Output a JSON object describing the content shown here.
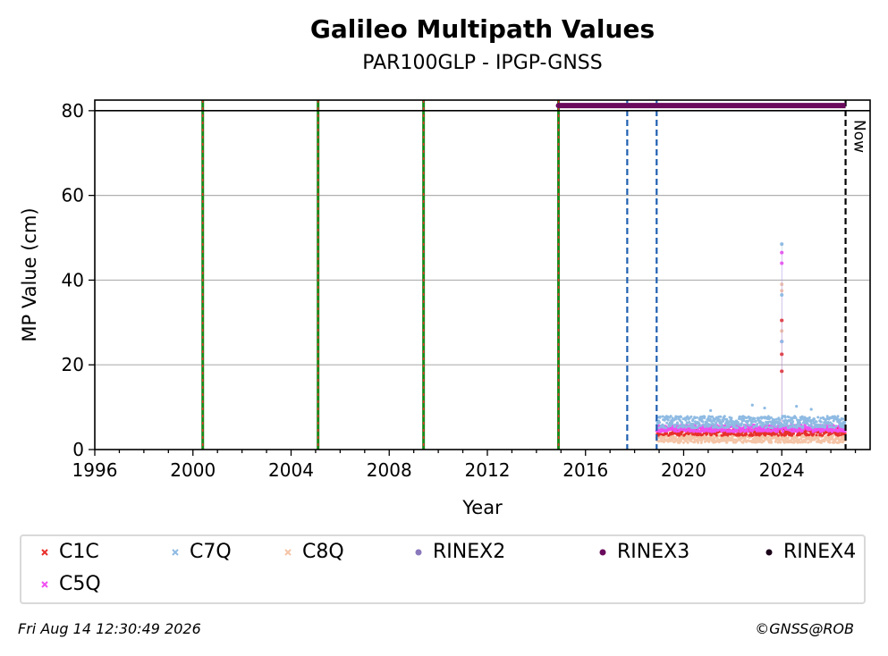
{
  "title": "Galileo Multipath Values",
  "subtitle": "PAR100GLP - IPGP-GNSS",
  "footer": {
    "timestamp": "Fri Aug 14 12:30:49 2026",
    "credit": "©GNSS@ROB"
  },
  "chart_data": {
    "type": "scatter",
    "xlabel": "Year",
    "ylabel": "MP Value (cm)",
    "xlim": [
      1996,
      2027.6
    ],
    "ylim": [
      0,
      82.5
    ],
    "xticks": [
      1996,
      2000,
      2004,
      2008,
      2012,
      2016,
      2020,
      2024
    ],
    "yticks": [
      0,
      20,
      40,
      60,
      80
    ],
    "grid": "horizontal",
    "legend_position": "bottom",
    "legend": [
      {
        "label": "C1C",
        "color": "#e8302b",
        "marker": "x"
      },
      {
        "label": "C7Q",
        "color": "#8fbbe3",
        "marker": "x"
      },
      {
        "label": "C8Q",
        "color": "#f4c4a6",
        "marker": "x"
      },
      {
        "label": "RINEX2",
        "color": "#8a78bd",
        "marker": "dot"
      },
      {
        "label": "RINEX3",
        "color": "#6a0a5c",
        "marker": "dot"
      },
      {
        "label": "RINEX4",
        "color": "#1a0018",
        "marker": "dot"
      },
      {
        "label": "C5Q",
        "color": "#f050f0",
        "marker": "x"
      }
    ],
    "series": [
      {
        "name": "C1C",
        "x_start": 2018.9,
        "x_end": 2026.6,
        "typical": 4.2,
        "spike": {
          "x": 2024.0,
          "values": [
            30.5,
            22.5,
            18.5
          ]
        }
      },
      {
        "name": "C7Q",
        "x_start": 2018.9,
        "x_end": 2026.6,
        "typical": 6.5,
        "spike": {
          "x": 2024.0,
          "values": [
            48.5,
            36.5,
            25.5
          ]
        }
      },
      {
        "name": "C8Q",
        "x_start": 2018.9,
        "x_end": 2026.6,
        "typical": 2.5,
        "spike": {
          "x": 2024.0,
          "values": [
            39,
            37.5,
            28
          ]
        }
      },
      {
        "name": "C5Q",
        "x_start": 2018.9,
        "x_end": 2026.6,
        "typical": 5.0,
        "spike": {
          "x": 2024.0,
          "values": [
            46.5,
            44,
            25.5
          ]
        }
      }
    ],
    "vertical_lines": [
      {
        "x": 2000.4,
        "style": "green-red-dashed"
      },
      {
        "x": 2005.1,
        "style": "green-red-dashed"
      },
      {
        "x": 2009.4,
        "style": "green-red-dashed"
      },
      {
        "x": 2014.9,
        "style": "green-red-dashed"
      },
      {
        "x": 2017.7,
        "style": "blue-dashed"
      },
      {
        "x": 2018.9,
        "style": "blue-dashed"
      },
      {
        "x": 2026.6,
        "style": "black-dashed",
        "label": "Now"
      }
    ],
    "rinex3_bar": {
      "x_start": 2014.9,
      "x_end": 2026.6,
      "y": 81.2
    },
    "reference_line_y": 80
  }
}
